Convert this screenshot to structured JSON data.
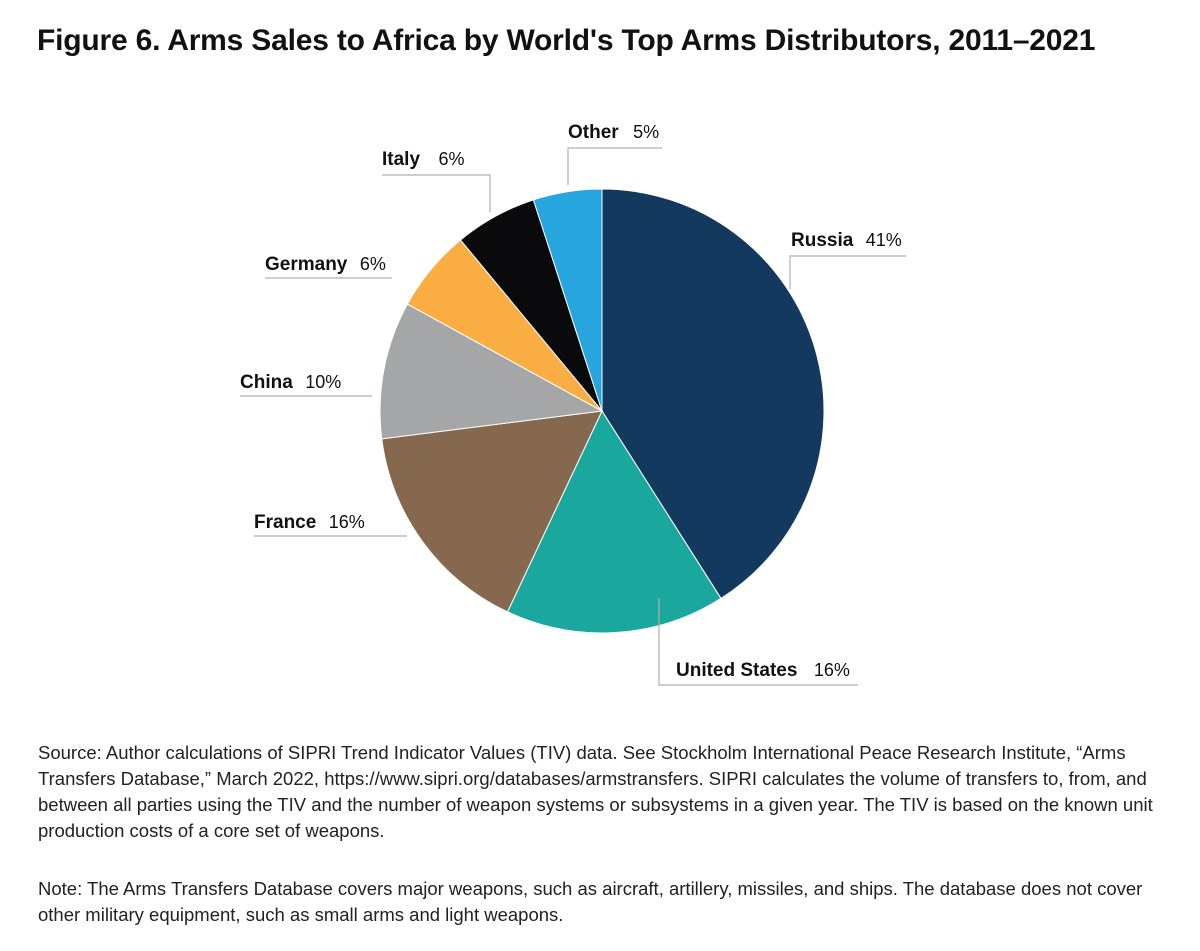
{
  "title": "Figure 6. Arms Sales to Africa by World's Top Arms Distributors, 2011–2021",
  "chart_data": {
    "type": "pie",
    "title": "Figure 6. Arms Sales to Africa by World's Top Arms Distributors, 2011–2021",
    "unit": "%",
    "start": "12 o'clock, clockwise",
    "slices": [
      {
        "key": "russia",
        "label": "Russia",
        "value": 41,
        "display": "41%",
        "color": "#133a5e"
      },
      {
        "key": "united-states",
        "label": "United States",
        "value": 16,
        "display": "16%",
        "color": "#1aa89e"
      },
      {
        "key": "france",
        "label": "France",
        "value": 16,
        "display": "16%",
        "color": "#86684e"
      },
      {
        "key": "china",
        "label": "China",
        "value": 10,
        "display": "10%",
        "color": "#a4a6a8"
      },
      {
        "key": "germany",
        "label": "Germany",
        "value": 6,
        "display": "6%",
        "color": "#f9ad43"
      },
      {
        "key": "italy",
        "label": "Italy",
        "value": 6,
        "display": "6%",
        "color": "#0a0a0c"
      },
      {
        "key": "other",
        "label": "Other",
        "value": 5,
        "display": "5%",
        "color": "#27a5de"
      }
    ]
  },
  "source_text": "Source: Author calculations of SIPRI Trend Indicator Values (TIV) data. See Stockholm International Peace Research Institute, “Arms Transfers Database,” March 2022, https://www.sipri.org/databases/armstransfers. SIPRI calculates the volume of transfers to, from, and between all parties using the TIV and the number of weapon systems or subsystems in a given year. The TIV is based on the known unit production costs of a core set of weapons.",
  "note_text": "Note: The Arms Transfers Database covers major weapons, such as aircraft, artillery, missiles, and ships. The database does not cover other military equipment, such as small arms and light weapons."
}
